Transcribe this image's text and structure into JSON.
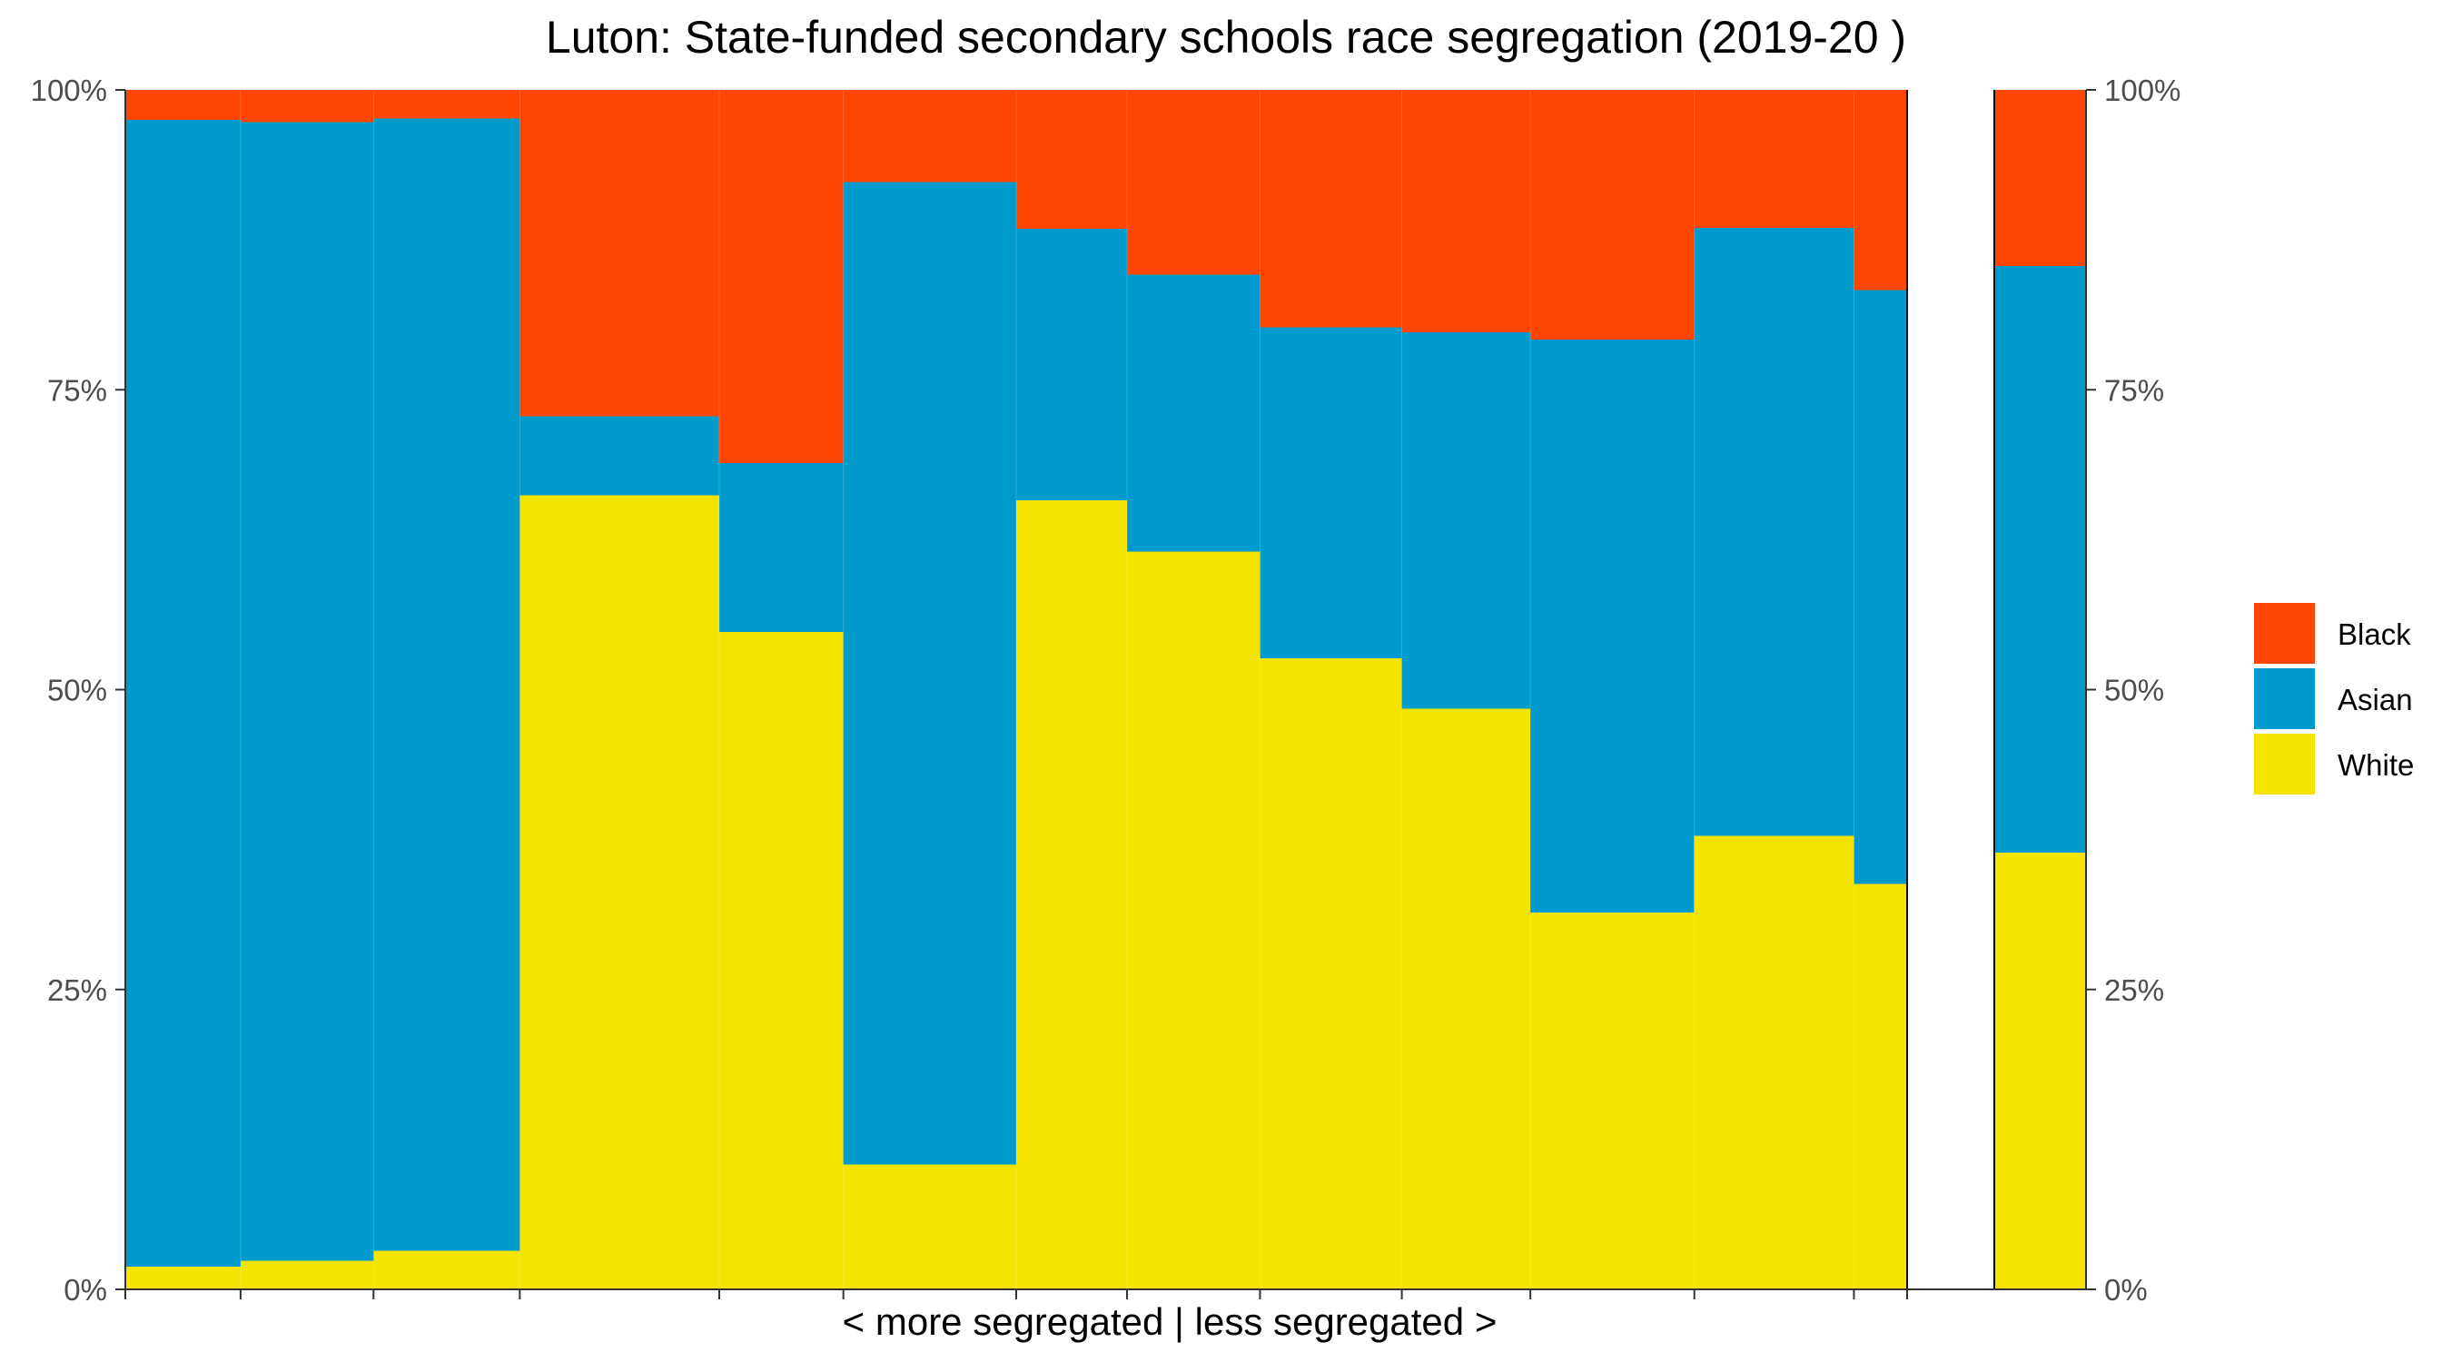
{
  "chart_data": {
    "type": "bar",
    "stacked": true,
    "variable_width": true,
    "title": "Luton: State-funded secondary schools race segregation (2019-20 )",
    "xlabel": "< more segregated | less segregated >",
    "ylabel": "",
    "ylim": [
      0,
      1
    ],
    "y_ticks": [
      "0%",
      "25%",
      "50%",
      "75%",
      "100%"
    ],
    "y_tick_values": [
      0,
      0.25,
      0.5,
      0.75,
      1.0
    ],
    "grid": false,
    "legend_position": "right",
    "series": [
      {
        "name": "White",
        "color": "#F5E400"
      },
      {
        "name": "Asian",
        "color": "#009ACD"
      },
      {
        "name": "Black",
        "color": "#FF4500"
      }
    ],
    "legend_order": [
      "Black",
      "Asian",
      "White"
    ],
    "schools": [
      {
        "width": 1.3,
        "white": 0.019,
        "asian": 0.956,
        "black": 0.025
      },
      {
        "width": 1.5,
        "white": 0.024,
        "asian": 0.949,
        "black": 0.027
      },
      {
        "width": 1.65,
        "white": 0.032,
        "asian": 0.944,
        "black": 0.024
      },
      {
        "width": 2.25,
        "white": 0.662,
        "asian": 0.066,
        "black": 0.272
      },
      {
        "width": 1.4,
        "white": 0.548,
        "asian": 0.141,
        "black": 0.311
      },
      {
        "width": 1.95,
        "white": 0.104,
        "asian": 0.819,
        "black": 0.077
      },
      {
        "width": 1.25,
        "white": 0.658,
        "asian": 0.226,
        "black": 0.116
      },
      {
        "width": 1.5,
        "white": 0.615,
        "asian": 0.231,
        "black": 0.154
      },
      {
        "width": 1.6,
        "white": 0.526,
        "asian": 0.276,
        "black": 0.198
      },
      {
        "width": 1.45,
        "white": 0.484,
        "asian": 0.314,
        "black": 0.202
      },
      {
        "width": 1.85,
        "white": 0.314,
        "asian": 0.478,
        "black": 0.208
      },
      {
        "width": 1.8,
        "white": 0.378,
        "asian": 0.507,
        "black": 0.115
      },
      {
        "width": 0.6,
        "white": 0.338,
        "asian": 0.495,
        "black": 0.167
      }
    ],
    "overall": {
      "white": 0.364,
      "asian": 0.489,
      "black": 0.147
    }
  }
}
